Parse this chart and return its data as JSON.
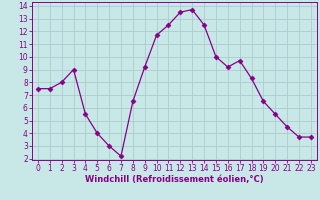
{
  "x": [
    0,
    1,
    2,
    3,
    4,
    5,
    6,
    7,
    8,
    9,
    10,
    11,
    12,
    13,
    14,
    15,
    16,
    17,
    18,
    19,
    20,
    21,
    22,
    23
  ],
  "y": [
    7.5,
    7.5,
    8.0,
    9.0,
    5.5,
    4.0,
    3.0,
    2.2,
    6.5,
    9.2,
    11.7,
    12.5,
    13.5,
    13.7,
    12.5,
    10.0,
    9.2,
    9.7,
    8.3,
    6.5,
    5.5,
    4.5,
    3.7,
    3.7
  ],
  "line_color": "#880088",
  "marker": "D",
  "marker_size": 2.5,
  "bg_color": "#c8e8e8",
  "grid_color": "#aacccc",
  "xlabel": "Windchill (Refroidissement éolien,°C)",
  "xlabel_color": "#880088",
  "tick_color": "#880088",
  "spine_color": "#880088",
  "ylim": [
    2,
    14
  ],
  "xlim": [
    -0.5,
    23.5
  ],
  "yticks": [
    2,
    3,
    4,
    5,
    6,
    7,
    8,
    9,
    10,
    11,
    12,
    13,
    14
  ],
  "xticks": [
    0,
    1,
    2,
    3,
    4,
    5,
    6,
    7,
    8,
    9,
    10,
    11,
    12,
    13,
    14,
    15,
    16,
    17,
    18,
    19,
    20,
    21,
    22,
    23
  ],
  "tick_fontsize": 5.5,
  "xlabel_fontsize": 6.0,
  "xlabel_fontweight": "bold"
}
